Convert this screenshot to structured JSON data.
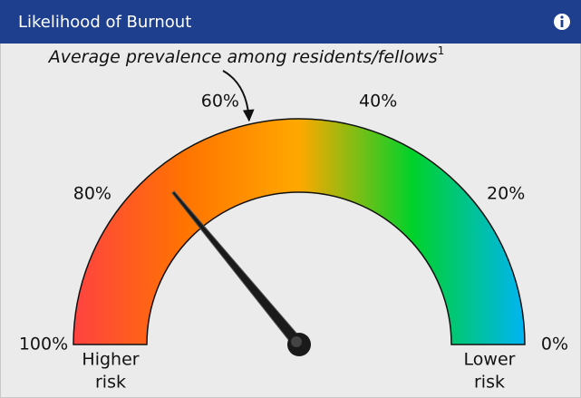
{
  "chart_data": {
    "type": "gauge",
    "title": "Likelihood of Burnout",
    "value": 72,
    "ylim": [
      100,
      0
    ],
    "yticks": [
      {
        "value": 100,
        "label": "100%"
      },
      {
        "value": 80,
        "label": "80%"
      },
      {
        "value": 60,
        "label": "60%"
      },
      {
        "value": 40,
        "label": "40%"
      },
      {
        "value": 20,
        "label": "20%"
      },
      {
        "value": 0,
        "label": "0%"
      }
    ],
    "annotation": {
      "text": "Average prevalence among residents/fellows",
      "note_marker": "1",
      "value": 57
    },
    "left_label": [
      "Higher",
      "risk"
    ],
    "right_label": [
      "Lower",
      "risk"
    ],
    "gradient_colors": [
      "#ff4242",
      "#ff7400",
      "#ffa800",
      "#00d22a",
      "#00b4f5"
    ],
    "needle_color": "#1a1a1a"
  }
}
